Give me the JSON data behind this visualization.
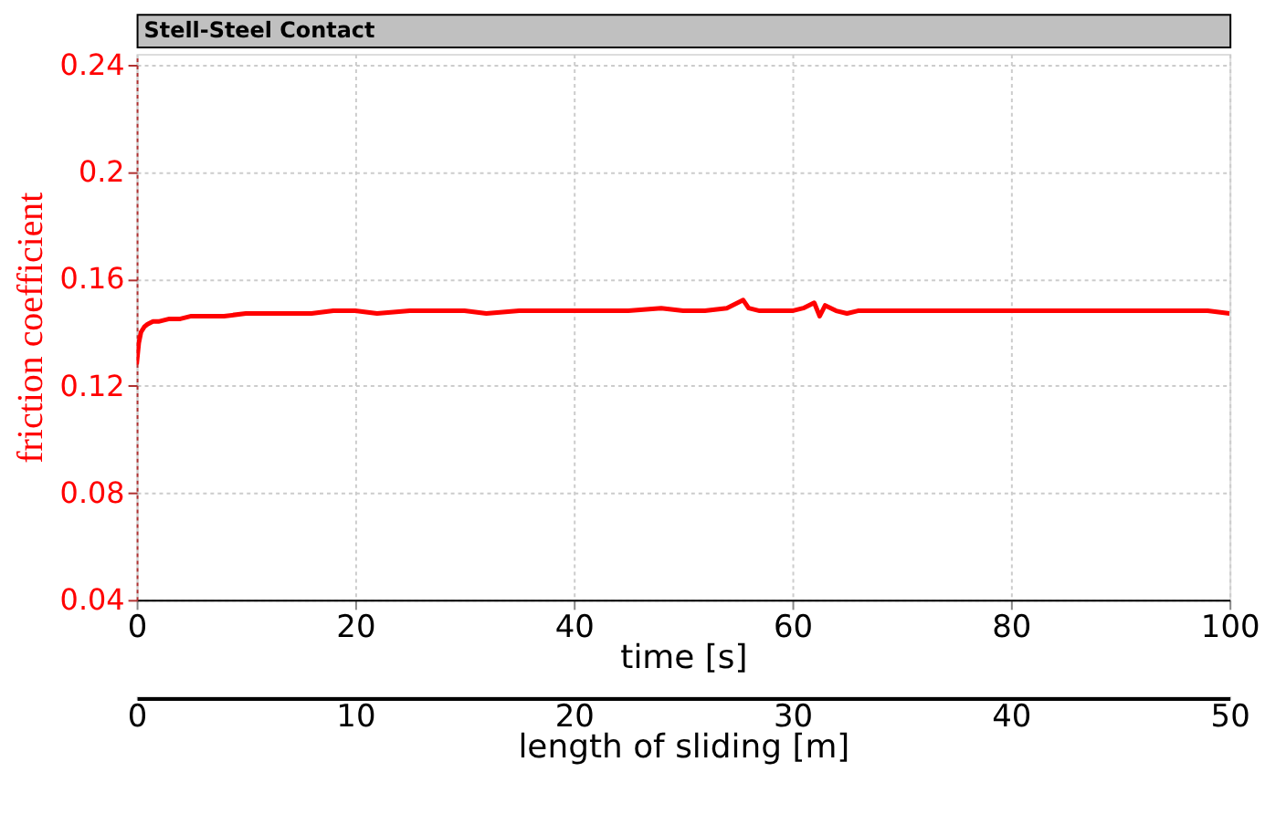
{
  "chart_data": {
    "type": "line",
    "title": "Stell-Steel Contact",
    "xlabel": "time [s]",
    "ylabel": "friction coefficient",
    "x2label": "length of sliding [m]",
    "x": [
      0,
      0.2,
      0.4,
      0.7,
      1,
      1.5,
      2,
      3,
      4,
      5,
      6,
      8,
      10,
      12,
      14,
      16,
      18,
      20,
      22,
      25,
      28,
      30,
      32,
      35,
      38,
      40,
      42,
      45,
      48,
      50,
      52,
      54,
      55,
      55.5,
      56,
      57,
      58,
      60,
      61,
      62,
      62.5,
      63,
      64,
      65,
      66,
      68,
      70,
      72,
      75,
      78,
      80,
      82,
      85,
      88,
      90,
      92,
      95,
      98,
      100
    ],
    "series": [
      {
        "color": "#ff0000",
        "values": [
          0.128,
          0.136,
          0.14,
          0.142,
          0.143,
          0.144,
          0.144,
          0.145,
          0.145,
          0.146,
          0.146,
          0.146,
          0.147,
          0.147,
          0.147,
          0.147,
          0.148,
          0.148,
          0.147,
          0.148,
          0.148,
          0.148,
          0.147,
          0.148,
          0.148,
          0.148,
          0.148,
          0.148,
          0.149,
          0.148,
          0.148,
          0.149,
          0.151,
          0.152,
          0.149,
          0.148,
          0.148,
          0.148,
          0.149,
          0.151,
          0.146,
          0.15,
          0.148,
          0.147,
          0.148,
          0.148,
          0.148,
          0.148,
          0.148,
          0.148,
          0.148,
          0.148,
          0.148,
          0.148,
          0.148,
          0.148,
          0.148,
          0.148,
          0.147
        ]
      }
    ],
    "xlim": [
      0,
      100
    ],
    "xticks": [
      0,
      20,
      40,
      60,
      80,
      100
    ],
    "x2lim": [
      0,
      50
    ],
    "x2ticks": [
      0,
      10,
      20,
      30,
      40,
      50
    ],
    "ylim": [
      0.04,
      0.244
    ],
    "yticks": [
      0.04,
      0.08,
      0.12,
      0.16,
      0.2,
      0.24
    ],
    "grid": true,
    "marker": "none",
    "line_style": "solid"
  }
}
